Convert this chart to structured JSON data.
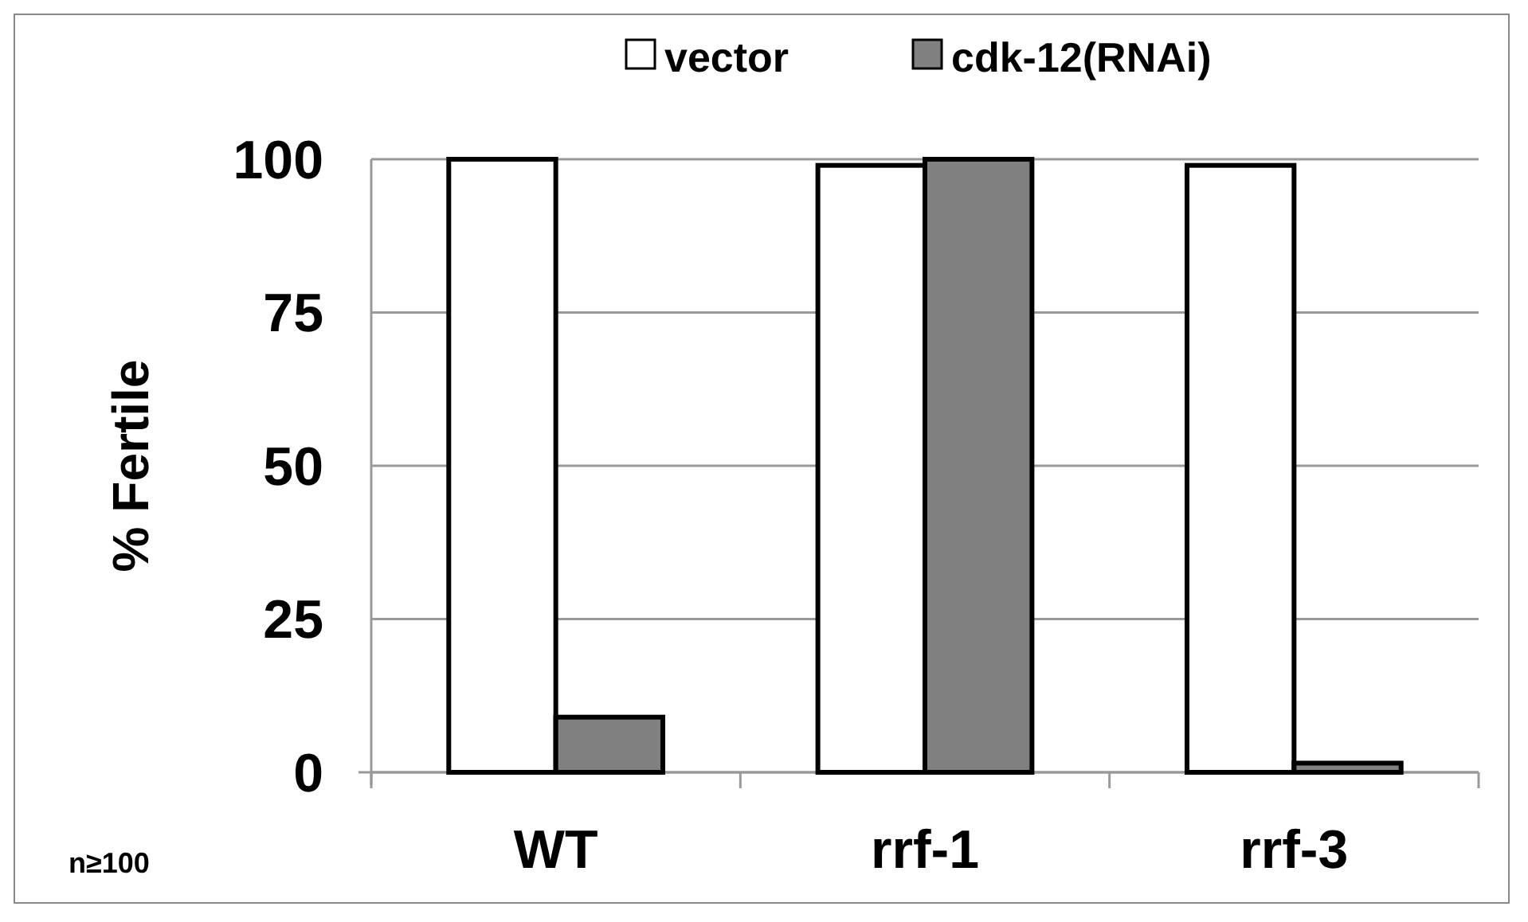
{
  "chart_data": {
    "type": "bar",
    "ylabel": "% Fertile",
    "categories": [
      "WT",
      "rrf-1",
      "rrf-3"
    ],
    "series": [
      {
        "name": "vector",
        "color": "#ffffff",
        "values": [
          100,
          99,
          99
        ]
      },
      {
        "name": "cdk-12(RNAi)",
        "color": "#808080",
        "values": [
          9,
          100,
          1.5
        ]
      }
    ],
    "ylim": [
      0,
      100
    ],
    "yticks": [
      0,
      25,
      50,
      75,
      100
    ],
    "grid": "y",
    "legend": "top",
    "annotations": [
      "n≥100"
    ]
  }
}
